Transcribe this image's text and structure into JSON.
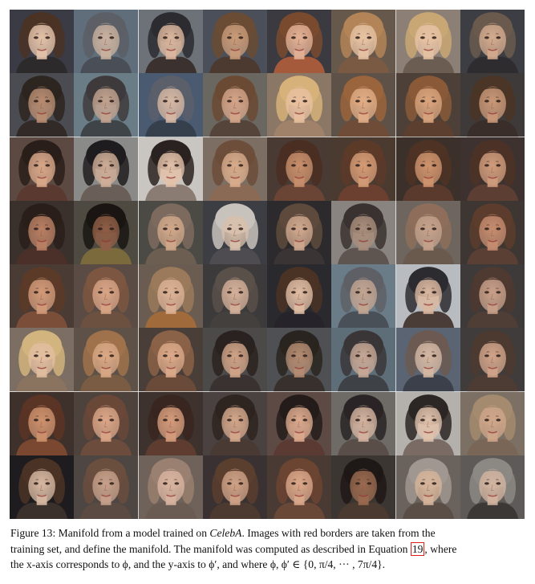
{
  "figure": {
    "rows": 8,
    "cols": 8,
    "training_cells": [
      [
        0,
        0
      ],
      [
        0,
        2
      ],
      [
        2,
        0
      ],
      [
        2,
        2
      ],
      [
        4,
        4
      ],
      [
        4,
        6
      ],
      [
        6,
        4
      ],
      [
        6,
        6
      ]
    ],
    "cells": [
      [
        {
          "skin": "#e4c3aa",
          "hair": "#4a3324",
          "bg": "#3a3b44",
          "shirt": "#2c2a2a"
        },
        {
          "skin": "#c9b19f",
          "hair": "#5c5f66",
          "bg": "#5f6e7a",
          "shirt": "#4a4f57"
        },
        {
          "skin": "#dcb79e",
          "hair": "#2b2b30",
          "bg": "#6c7277",
          "shirt": "#3b3230"
        },
        {
          "skin": "#c89b79",
          "hair": "#6a4b34",
          "bg": "#4b4f5a",
          "shirt": "#4c3a31"
        },
        {
          "skin": "#e3b195",
          "hair": "#7a4a2e",
          "bg": "#3a3a40",
          "shirt": "#a55a3c"
        },
        {
          "skin": "#e6c3a4",
          "hair": "#b28457",
          "bg": "#67584c",
          "shirt": "#7b5a44"
        },
        {
          "skin": "#e6c2a4",
          "hair": "#c9a774",
          "bg": "#8b7f76",
          "shirt": "#6c5d52"
        },
        {
          "skin": "#d3ab8e",
          "hair": "#6a5a4e",
          "bg": "#3d3e44",
          "shirt": "#2e2c2e"
        }
      ],
      [
        {
          "skin": "#b88d72",
          "hair": "#2d2520",
          "bg": "#4a4c52",
          "shirt": "#322a26"
        },
        {
          "skin": "#c2a390",
          "hair": "#3e3a3c",
          "bg": "#6a7d86",
          "shirt": "#3e4448"
        },
        {
          "skin": "#d6b8a4",
          "hair": "#5a5f6a",
          "bg": "#4a5a70",
          "shirt": "#36404c"
        },
        {
          "skin": "#d4a589",
          "hair": "#6b4a34",
          "bg": "#6a6660",
          "shirt": "#55443a"
        },
        {
          "skin": "#e8c0a0",
          "hair": "#d6b27a",
          "bg": "#8b7766",
          "shirt": "#a0826a"
        },
        {
          "skin": "#e0ad86",
          "hair": "#9a643c",
          "bg": "#5e5148",
          "shirt": "#6e4c38"
        },
        {
          "skin": "#d9a47e",
          "hair": "#8a5a38",
          "bg": "#4c4038",
          "shirt": "#5c3f2e"
        },
        {
          "skin": "#c99878",
          "hair": "#4a3526",
          "bg": "#3e3a3a",
          "shirt": "#3a2e2a"
        }
      ],
      [
        {
          "skin": "#d9a88a",
          "hair": "#2a1e1a",
          "bg": "#5c4a42",
          "shirt": "#5a3a30"
        },
        {
          "skin": "#cfae98",
          "hair": "#1f1c1f",
          "bg": "#8a8a88",
          "shirt": "#6a5e58"
        },
        {
          "skin": "#e3c2aa",
          "hair": "#2a2220",
          "bg": "#c9c5c0",
          "shirt": "#8a7c72"
        },
        {
          "skin": "#d8ac8c",
          "hair": "#6c4e3a",
          "bg": "#7c6e62",
          "shirt": "#8a6a54"
        },
        {
          "skin": "#c88f6c",
          "hair": "#4a2e22",
          "bg": "#4a3a34",
          "shirt": "#6a4434"
        },
        {
          "skin": "#d59c76",
          "hair": "#5c3a28",
          "bg": "#4a3a30",
          "shirt": "#6b4030"
        },
        {
          "skin": "#cf946e",
          "hair": "#4e3224",
          "bg": "#3c302a",
          "shirt": "#5a3a2c"
        },
        {
          "skin": "#d09c7c",
          "hair": "#4c3226",
          "bg": "#3e3230",
          "shirt": "#5c3e32"
        }
      ],
      [
        {
          "skin": "#b98064",
          "hair": "#2a1e1a",
          "bg": "#3a302c",
          "shirt": "#4a3028"
        },
        {
          "skin": "#8f5e46",
          "hair": "#1a1512",
          "bg": "#4e4a42",
          "shirt": "#7a6a3c"
        },
        {
          "skin": "#d0a88a",
          "hair": "#7c6a5e",
          "bg": "#4c4a44",
          "shirt": "#6c5e50"
        },
        {
          "skin": "#d8c0ac",
          "hair": "#c8c2bc",
          "bg": "#3c3e44",
          "shirt": "#4e4c50"
        },
        {
          "skin": "#cfa88e",
          "hair": "#5e4a3c",
          "bg": "#2c2a2c",
          "shirt": "#3a3434"
        },
        {
          "skin": "#a98e7c",
          "hair": "#3a3230",
          "bg": "#8a8480",
          "shirt": "#5e5450"
        },
        {
          "skin": "#c4a28c",
          "hair": "#8e6e5a",
          "bg": "#6e665e",
          "shirt": "#6a5a4e"
        },
        {
          "skin": "#c68d70",
          "hair": "#5c3c2c",
          "bg": "#3e3632",
          "shirt": "#5a4034"
        }
      ],
      [
        {
          "skin": "#d29b7a",
          "hair": "#5c3a28",
          "bg": "#4a3c34",
          "shirt": "#7a4e38"
        },
        {
          "skin": "#d8a486",
          "hair": "#7c5640",
          "bg": "#5a4c44",
          "shirt": "#6c5040"
        },
        {
          "skin": "#dcb296",
          "hair": "#9a7a5a",
          "bg": "#6a5c50",
          "shirt": "#a06a3a"
        },
        {
          "skin": "#d4b09a",
          "hair": "#5a504a",
          "bg": "#3c3a3a",
          "shirt": "#44403e"
        },
        {
          "skin": "#e0bda4",
          "hair": "#4a3324",
          "bg": "#2a2a2e",
          "shirt": "#26242a"
        },
        {
          "skin": "#c2a592",
          "hair": "#5e6066",
          "bg": "#6a7c88",
          "shirt": "#4a5058"
        },
        {
          "skin": "#dab8a0",
          "hair": "#2b2b30",
          "bg": "#b8bcc0",
          "shirt": "#4a3c36"
        },
        {
          "skin": "#c9a08a",
          "hair": "#4e3a30",
          "bg": "#3e3a3a",
          "shirt": "#4e3e36"
        }
      ],
      [
        {
          "skin": "#e2bea0",
          "hair": "#d2b47e",
          "bg": "#7c6e62",
          "shirt": "#8a7460"
        },
        {
          "skin": "#d9a885",
          "hair": "#a0724c",
          "bg": "#5e5248",
          "shirt": "#7a5c44"
        },
        {
          "skin": "#dcaa8a",
          "hair": "#8a6248",
          "bg": "#4a3e38",
          "shirt": "#6a4a38"
        },
        {
          "skin": "#d0a488",
          "hair": "#2a2220",
          "bg": "#4c4a48",
          "shirt": "#3a3230"
        },
        {
          "skin": "#b48c72",
          "hair": "#2a2420",
          "bg": "#4e5054",
          "shirt": "#38302c"
        },
        {
          "skin": "#c6a896",
          "hair": "#3a3638",
          "bg": "#5e6e78",
          "shirt": "#3e4246"
        },
        {
          "skin": "#d4b8a4",
          "hair": "#6c5a52",
          "bg": "#5a6472",
          "shirt": "#3c404a"
        },
        {
          "skin": "#d0a48a",
          "hair": "#4c3a30",
          "bg": "#403c3c",
          "shirt": "#4c3c34"
        }
      ],
      [
        {
          "skin": "#cd926e",
          "hair": "#5a3424",
          "bg": "#3e302a",
          "shirt": "#7a4830"
        },
        {
          "skin": "#dba688",
          "hair": "#6a4838",
          "bg": "#4e423c",
          "shirt": "#6c4c3c"
        },
        {
          "skin": "#d59c7c",
          "hair": "#3a2620",
          "bg": "#3e322e",
          "shirt": "#5e3c30"
        },
        {
          "skin": "#d4a88c",
          "hair": "#2e2420",
          "bg": "#4a4240",
          "shirt": "#4a3a34"
        },
        {
          "skin": "#dcaa8e",
          "hair": "#241c1a",
          "bg": "#5e4a44",
          "shirt": "#5a3a32"
        },
        {
          "skin": "#d4b4a0",
          "hair": "#2a2426",
          "bg": "#6e6a66",
          "shirt": "#5a4e48"
        },
        {
          "skin": "#e0c2ac",
          "hair": "#2c2624",
          "bg": "#b4b0ac",
          "shirt": "#7a6c64"
        },
        {
          "skin": "#cfa68a",
          "hair": "#a48a6e",
          "bg": "#7c7064",
          "shirt": "#7a6656"
        }
      ],
      [
        {
          "skin": "#d6b8a2",
          "hair": "#4a3224",
          "bg": "#1e1c1e",
          "shirt": "#3a302c"
        },
        {
          "skin": "#c6a08a",
          "hair": "#6a4e3e",
          "bg": "#4e4642",
          "shirt": "#5a4a42"
        },
        {
          "skin": "#d8b4a0",
          "hair": "#9a8070",
          "bg": "#6e625a",
          "shirt": "#6a5c52"
        },
        {
          "skin": "#cfa286",
          "hair": "#5a3e2e",
          "bg": "#3a3232",
          "shirt": "#4c3a30"
        },
        {
          "skin": "#dba88a",
          "hair": "#6c4432",
          "bg": "#4a3a34",
          "shirt": "#6a4838"
        },
        {
          "skin": "#9a6a50",
          "hair": "#1e1816",
          "bg": "#3c3632",
          "shirt": "#4a3a30"
        },
        {
          "skin": "#d6b49a",
          "hair": "#a09890",
          "bg": "#6a625c",
          "shirt": "#5a4e46"
        },
        {
          "skin": "#d2b4a0",
          "hair": "#8c8884",
          "bg": "#5e5a58",
          "shirt": "#3c3836"
        }
      ]
    ]
  },
  "caption": {
    "line1_prefix": "Figure 13: Manifold from a model trained on ",
    "dataset": "CelebA",
    "line1_suffix": ". Images with red borders are taken from the",
    "line2_prefix": "training set, and define the manifold. The manifold was computed as described in Equation ",
    "equation_ref": "19",
    "line2_suffix": ", where",
    "line3": "the x-axis corresponds to ϕ, and the y-axis to ϕ′, and where ϕ, ϕ′ ∈ {0, π/4, ··· , 7π/4}."
  }
}
